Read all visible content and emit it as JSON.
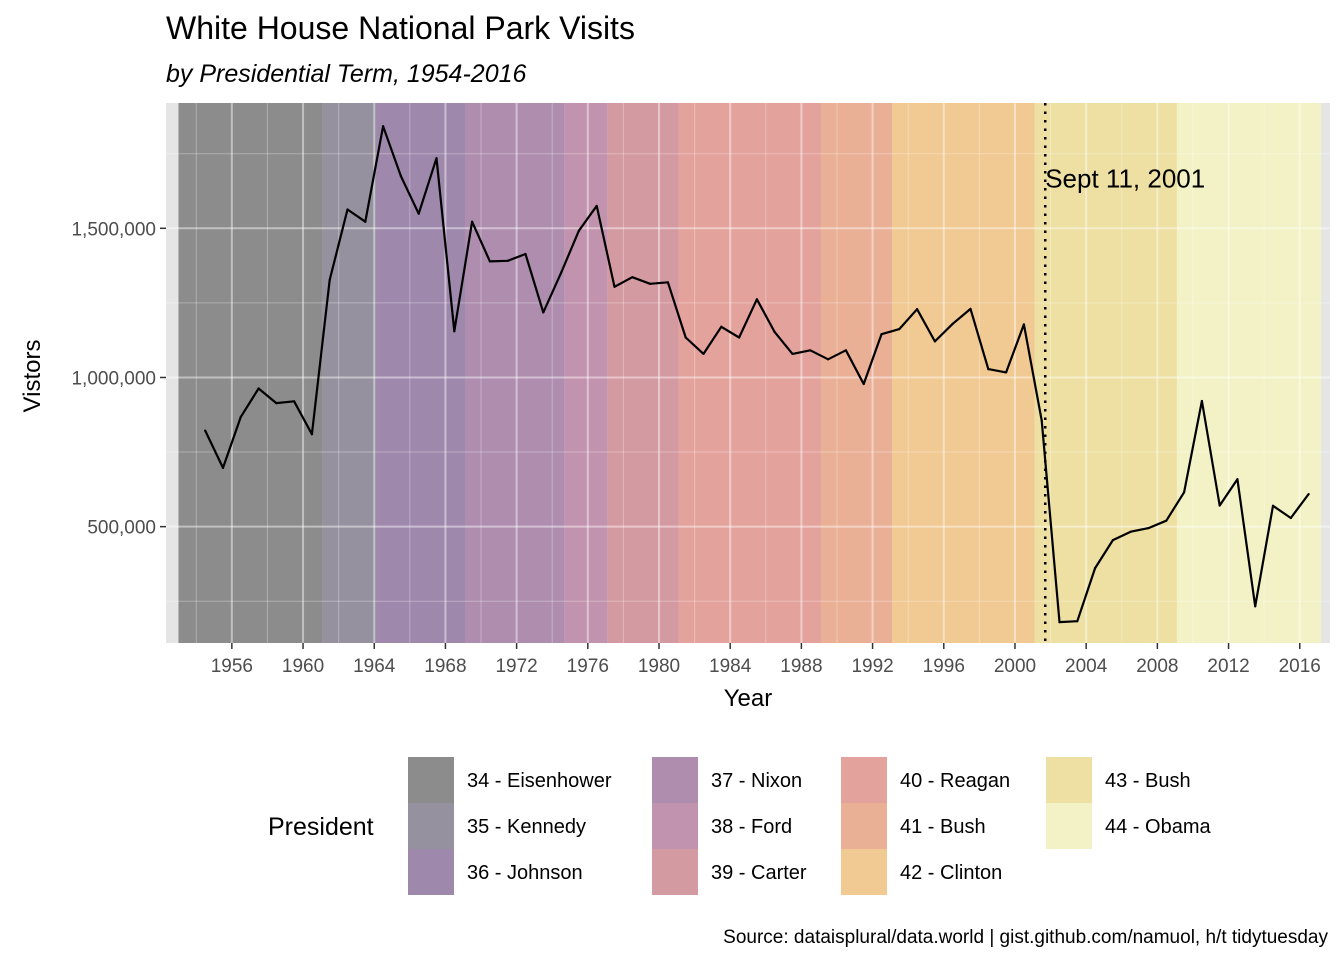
{
  "chart_data": {
    "type": "line",
    "title": "White House National Park Visits",
    "subtitle": "by Presidential Term, 1954-2016",
    "xlabel": "Year",
    "ylabel": "Vistors",
    "caption": "Source: dataisplural/data.world | gist.github.com/namuol, h/t  tidytuesday",
    "xlim": [
      1952.3,
      2017.7
    ],
    "ylim": [
      110000,
      1920000
    ],
    "x_ticks": [
      1956,
      1960,
      1964,
      1968,
      1972,
      1976,
      1980,
      1984,
      1988,
      1992,
      1996,
      2000,
      2004,
      2008,
      2012,
      2016
    ],
    "y_ticks": [
      500000,
      1000000,
      1500000
    ],
    "y_tick_labels": [
      "500,000",
      "1,000,000",
      "1,500,000"
    ],
    "grid": true,
    "legend_position": "bottom",
    "legend_title": "President",
    "presidents": [
      {
        "label": "34 - Eisenhower",
        "start": 1953,
        "end": 1961.1,
        "color": "#8c8c8c"
      },
      {
        "label": "35 - Kennedy",
        "start": 1961.1,
        "end": 1964.1,
        "color": "#96919f"
      },
      {
        "label": "36 - Johnson",
        "start": 1964.1,
        "end": 1969.1,
        "color": "#9e88ac"
      },
      {
        "label": "37 - Nixon",
        "start": 1969.1,
        "end": 1974.7,
        "color": "#ae8daf"
      },
      {
        "label": "38 - Ford",
        "start": 1974.7,
        "end": 1977.1,
        "color": "#c293ae"
      },
      {
        "label": "39 - Carter",
        "start": 1977.1,
        "end": 1981.1,
        "color": "#d49aa1"
      },
      {
        "label": "40 - Reagan",
        "start": 1981.1,
        "end": 1989.1,
        "color": "#e3a39c"
      },
      {
        "label": "41 - Bush",
        "start": 1989.1,
        "end": 1993.1,
        "color": "#eab096"
      },
      {
        "label": "42 - Clinton",
        "start": 1993.1,
        "end": 2001.1,
        "color": "#f1c993"
      },
      {
        "label": "43 - Bush",
        "start": 2001.1,
        "end": 2009.1,
        "color": "#ede0a2"
      },
      {
        "label": "44 - Obama",
        "start": 2009.1,
        "end": 2017.2,
        "color": "#f2f2c6"
      }
    ],
    "annotation": {
      "label": "Sept 11, 2001",
      "x": 2001.7,
      "y": 1670000
    },
    "series": [
      {
        "x": [
          1954.5,
          1955.5,
          1956.5,
          1957.5,
          1958.5,
          1959.5,
          1960.5,
          1961.5,
          1962.5,
          1963.5,
          1964.5,
          1965.5,
          1966.5,
          1967.5,
          1968.5,
          1969.5,
          1970.5,
          1971.5,
          1972.5,
          1973.5,
          1974.5,
          1975.5,
          1976.5,
          1977.5,
          1978.5,
          1979.5,
          1980.5,
          1981.5,
          1982.5,
          1983.5,
          1984.5,
          1985.5,
          1986.5,
          1987.5,
          1988.5,
          1989.5,
          1990.5,
          1991.5,
          1992.5,
          1993.5,
          1994.5,
          1995.5,
          1996.5,
          1997.5,
          1998.5,
          1999.5,
          2000.5,
          2001.5,
          2002.5,
          2003.5,
          2004.5,
          2005.5,
          2006.5,
          2007.5,
          2008.5,
          2009.5,
          2010.5,
          2011.5,
          2012.5,
          2013.5,
          2014.5,
          2015.5,
          2016.5
        ],
        "y": [
          822000,
          697000,
          868000,
          963000,
          914000,
          920000,
          810000,
          1327000,
          1563000,
          1522000,
          1842000,
          1675000,
          1549000,
          1735000,
          1155000,
          1522000,
          1389000,
          1391000,
          1414000,
          1218000,
          1351000,
          1492000,
          1575000,
          1304000,
          1336000,
          1314000,
          1319000,
          1134000,
          1079000,
          1170000,
          1134000,
          1262000,
          1152000,
          1079000,
          1091000,
          1061000,
          1091000,
          978000,
          1145000,
          1162000,
          1229000,
          1121000,
          1180000,
          1230000,
          1028000,
          1017000,
          1178000,
          856000,
          180000,
          183000,
          361000,
          455000,
          483000,
          495000,
          520000,
          615000,
          921000,
          571000,
          659000,
          233000,
          570000,
          529000,
          609000
        ]
      }
    ]
  }
}
